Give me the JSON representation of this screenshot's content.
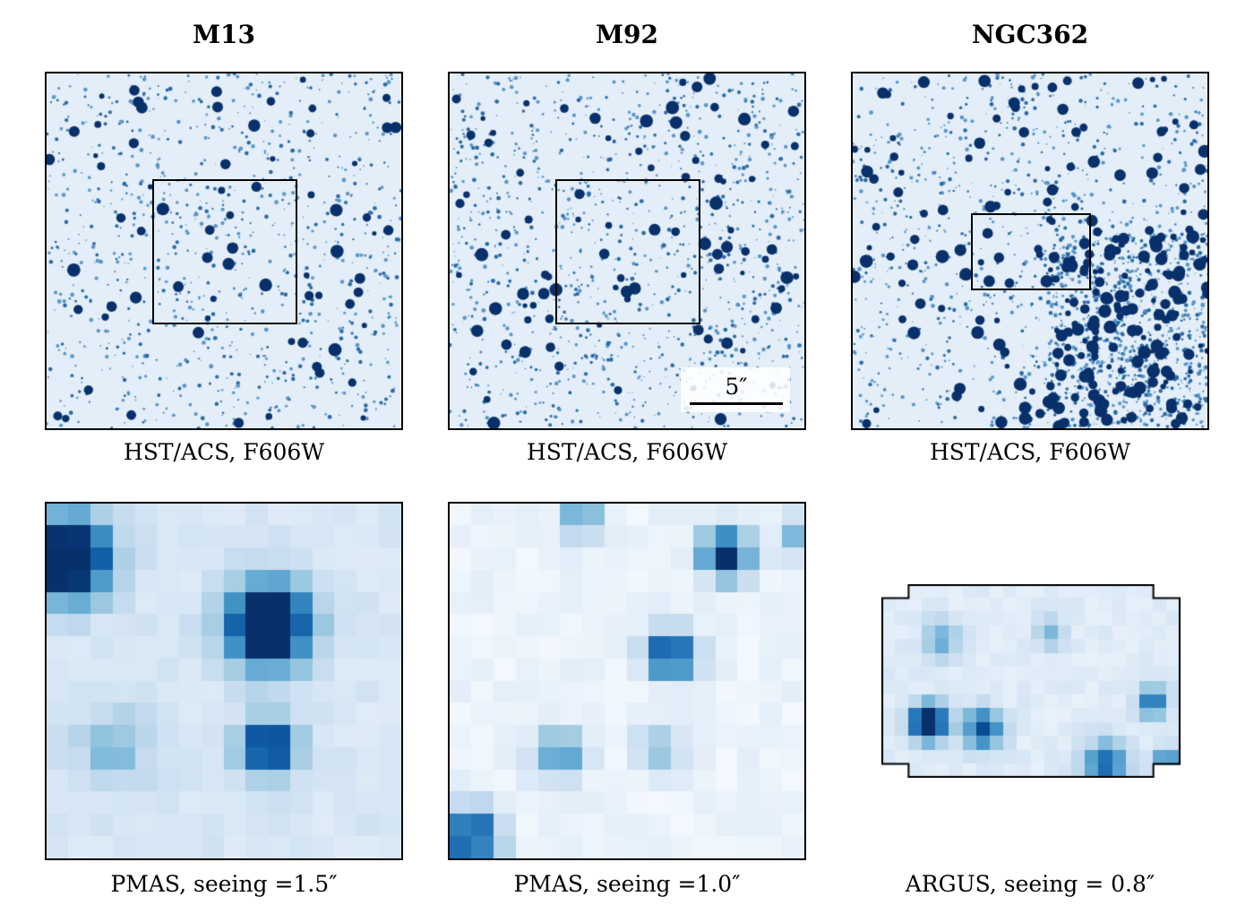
{
  "columns": [
    {
      "title": "M13",
      "hst_caption": "HST/ACS, F606W",
      "ifu_caption": "PMAS, seeing =1.5″"
    },
    {
      "title": "M92",
      "hst_caption": "HST/ACS, F606W",
      "ifu_caption": "PMAS, seeing =1.0″"
    },
    {
      "title": "NGC362",
      "hst_caption": "HST/ACS, F606W",
      "ifu_caption": "ARGUS, seeing = 0.8″"
    }
  ],
  "scalebar": {
    "label": "5″"
  },
  "colors": {
    "dark": "#08306b",
    "light": "#f7fbff",
    "border": "#000000"
  }
}
